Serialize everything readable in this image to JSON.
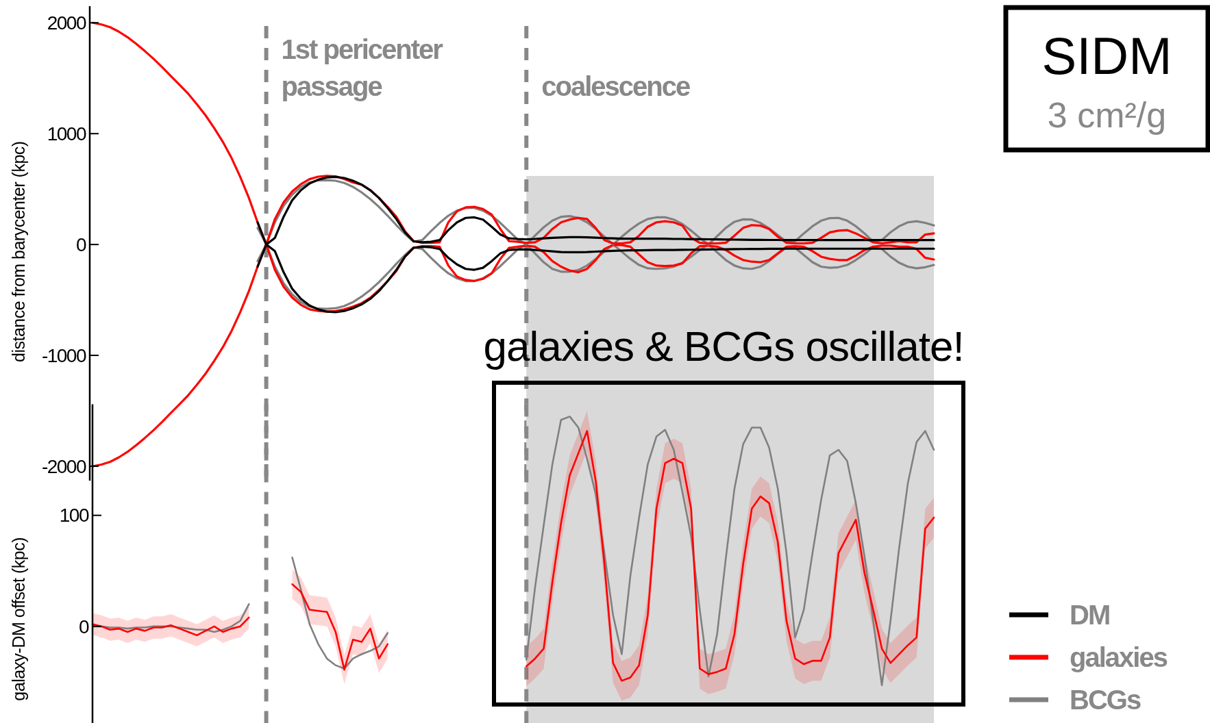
{
  "chart_data": [
    {
      "type": "line",
      "ylabel": "distance from barycenter (kpc)",
      "annotations": [
        "1st pericenter passage",
        "coalescence",
        "SIDM",
        "3 cm²/g"
      ],
      "categories": [
        null,
        null,
        null,
        null,
        null,
        null,
        null,
        null,
        null,
        null,
        null,
        null,
        null,
        null,
        null,
        null,
        null,
        null,
        null,
        null,
        null,
        null,
        null,
        null,
        null,
        null,
        null,
        null,
        null,
        null,
        null,
        null,
        null,
        null,
        null,
        null,
        null,
        null,
        null,
        null,
        null,
        null,
        null,
        null,
        null,
        null,
        null,
        null,
        null,
        null,
        null,
        null,
        null,
        null,
        null,
        null,
        null,
        null,
        null,
        null,
        null,
        null,
        null,
        null,
        null,
        null,
        null,
        null,
        null,
        null,
        null,
        null,
        null,
        null,
        null,
        null,
        null,
        null,
        null,
        null,
        null,
        null,
        null,
        null,
        null,
        null,
        null,
        null,
        null,
        null,
        null,
        null,
        null,
        null,
        null,
        null,
        null,
        null
      ],
      "ylim": [
        -2130,
        2150
      ],
      "yticks": [
        -2000,
        -1000,
        0,
        1000,
        2000
      ],
      "tick_labels": "y",
      "grid": false,
      "legend": "bottom right",
      "series": [
        {
          "name": "DM",
          "color": "#000000",
          "values": [
            null,
            null,
            null,
            null,
            null,
            null,
            null,
            null,
            null,
            null,
            null,
            null,
            null,
            null,
            null,
            null,
            null,
            null,
            null,
            200,
            0,
            60,
            250,
            400,
            490,
            550,
            585,
            605,
            610,
            600,
            575,
            540,
            490,
            420,
            330,
            230,
            110,
            30,
            20,
            25,
            40,
            130,
            200,
            240,
            245,
            225,
            160,
            90,
            55,
            50,
            47,
            50,
            55,
            60,
            63,
            66,
            66,
            65,
            62,
            58,
            55,
            53,
            52,
            52,
            52,
            52,
            52,
            50,
            50,
            48,
            48,
            47,
            46,
            45,
            44,
            43,
            42,
            42,
            41,
            41,
            40,
            40,
            40,
            40,
            40,
            40,
            40,
            40,
            40,
            40,
            40,
            40,
            40,
            40,
            40,
            40,
            40,
            40
          ]
        },
        {
          "name": "galaxies",
          "color": "#ff0000",
          "values": [
            2000,
            1985,
            1960,
            1920,
            1870,
            1810,
            1745,
            1675,
            1600,
            1520,
            1440,
            1360,
            1265,
            1165,
            1050,
            925,
            780,
            610,
            420,
            200,
            0,
            230,
            380,
            480,
            545,
            590,
            612,
            620,
            615,
            590,
            560,
            540,
            490,
            420,
            340,
            250,
            120,
            30,
            15,
            15,
            20,
            200,
            300,
            335,
            340,
            320,
            270,
            140,
            30,
            25,
            15,
            20,
            60,
            140,
            200,
            225,
            240,
            230,
            150,
            40,
            10,
            10,
            20,
            80,
            160,
            200,
            210,
            200,
            170,
            60,
            15,
            10,
            10,
            15,
            80,
            150,
            175,
            170,
            140,
            70,
            15,
            10,
            10,
            15,
            60,
            110,
            125,
            130,
            100,
            60,
            20,
            10,
            20,
            30,
            20,
            20,
            90,
            100
          ]
        },
        {
          "name": "BCGs",
          "color": "#808080",
          "values": [
            null,
            null,
            null,
            null,
            null,
            null,
            null,
            null,
            null,
            null,
            null,
            null,
            null,
            null,
            null,
            null,
            null,
            null,
            null,
            150,
            0,
            200,
            350,
            450,
            520,
            560,
            578,
            580,
            575,
            555,
            520,
            470,
            410,
            340,
            260,
            175,
            95,
            25,
            40,
            120,
            195,
            260,
            305,
            330,
            330,
            305,
            260,
            195,
            120,
            45,
            0,
            80,
            155,
            215,
            250,
            256,
            240,
            200,
            140,
            70,
            0,
            70,
            135,
            190,
            230,
            245,
            246,
            225,
            185,
            125,
            60,
            0,
            75,
            150,
            205,
            227,
            225,
            195,
            145,
            85,
            25,
            30,
            100,
            165,
            215,
            238,
            240,
            215,
            165,
            100,
            25,
            40,
            110,
            165,
            200,
            210,
            195,
            172
          ]
        },
        {
          "color": "#000000",
          "values": [
            null,
            null,
            null,
            null,
            null,
            null,
            null,
            null,
            null,
            null,
            null,
            null,
            null,
            null,
            null,
            null,
            null,
            null,
            null,
            -200,
            0,
            -60,
            -250,
            -400,
            -490,
            -550,
            -585,
            -605,
            -610,
            -600,
            -575,
            -540,
            -490,
            -420,
            -330,
            -230,
            -110,
            -30,
            -20,
            -25,
            -40,
            -120,
            -180,
            -220,
            -228,
            -210,
            -150,
            -80,
            -50,
            -45,
            -45,
            -50,
            -55,
            -62,
            -68,
            -70,
            -70,
            -68,
            -64,
            -60,
            -57,
            -55,
            -53,
            -52,
            -51,
            -50,
            -50,
            -49,
            -48,
            -47,
            -46,
            -45,
            -44,
            -43,
            -42,
            -41,
            -40,
            -40,
            -39,
            -39,
            -38,
            -38,
            -38,
            -38,
            -38,
            -38,
            -38,
            -38,
            -38,
            -38,
            -38,
            -38,
            -38,
            -38,
            -38,
            -38,
            -38,
            -38
          ]
        },
        {
          "color": "#ff0000",
          "values": [
            -2000,
            -1985,
            -1960,
            -1920,
            -1870,
            -1810,
            -1745,
            -1675,
            -1600,
            -1520,
            -1440,
            -1360,
            -1265,
            -1165,
            -1050,
            -925,
            -780,
            -610,
            -420,
            -200,
            0,
            -230,
            -380,
            -480,
            -545,
            -585,
            -600,
            -605,
            -600,
            -585,
            -560,
            -530,
            -480,
            -410,
            -330,
            -240,
            -110,
            -30,
            -15,
            -15,
            -20,
            -190,
            -290,
            -320,
            -328,
            -310,
            -260,
            -130,
            -30,
            -20,
            -10,
            -20,
            -70,
            -150,
            -200,
            -235,
            -250,
            -220,
            -140,
            -40,
            -5,
            -5,
            -20,
            -90,
            -160,
            -190,
            -195,
            -190,
            -170,
            -80,
            -15,
            -10,
            -20,
            -50,
            -100,
            -140,
            -155,
            -160,
            -140,
            -80,
            -20,
            -15,
            -20,
            -60,
            -110,
            -130,
            -140,
            -140,
            -100,
            -50,
            -20,
            -10,
            -10,
            -20,
            -20,
            -40,
            -120,
            -135
          ]
        },
        {
          "color": "#808080",
          "values": [
            null,
            null,
            null,
            null,
            null,
            null,
            null,
            null,
            null,
            null,
            null,
            null,
            null,
            null,
            null,
            null,
            null,
            null,
            null,
            -150,
            0,
            -200,
            -350,
            -450,
            -520,
            -560,
            -578,
            -580,
            -575,
            -555,
            -520,
            -470,
            -410,
            -340,
            -260,
            -175,
            -95,
            -25,
            -40,
            -120,
            -195,
            -260,
            -305,
            -330,
            -330,
            -305,
            -260,
            -195,
            -120,
            -45,
            0,
            -80,
            -160,
            -220,
            -245,
            -245,
            -230,
            -190,
            -130,
            -65,
            0,
            -65,
            -130,
            -185,
            -215,
            -220,
            -215,
            -200,
            -165,
            -110,
            -50,
            0,
            -70,
            -140,
            -190,
            -215,
            -220,
            -200,
            -150,
            -85,
            -25,
            -30,
            -95,
            -160,
            -200,
            -210,
            -205,
            -185,
            -140,
            -85,
            -25,
            -40,
            -110,
            -165,
            -200,
            -215,
            -205,
            -185
          ]
        }
      ]
    },
    {
      "type": "line",
      "ylabel": "galaxy-DM offset (kpc)",
      "annotations": [
        "galaxies & BCGs oscillate!"
      ],
      "categories": [
        null,
        null,
        null,
        null,
        null,
        null,
        null,
        null,
        null,
        null,
        null,
        null,
        null,
        null,
        null,
        null,
        null,
        null,
        null,
        null,
        null,
        null,
        null,
        null,
        null,
        null,
        null,
        null,
        null,
        null,
        null,
        null,
        null,
        null,
        null,
        null,
        null,
        null,
        null,
        null,
        null,
        null,
        null,
        null,
        null,
        null,
        null,
        null,
        null,
        null,
        null,
        null,
        null,
        null,
        null,
        null,
        null,
        null,
        null,
        null,
        null,
        null,
        null,
        null,
        null,
        null,
        null,
        null,
        null,
        null,
        null,
        null,
        null,
        null,
        null,
        null,
        null,
        null,
        null,
        null,
        null,
        null,
        null,
        null,
        null,
        null,
        null,
        null,
        null,
        null,
        null,
        null,
        null,
        null,
        null,
        null,
        null,
        null
      ],
      "ylim": [
        -87,
        200
      ],
      "yticks": [
        0,
        100
      ],
      "tick_labels": "y",
      "grid": false,
      "series": [
        {
          "color": "#ff0000",
          "values": [
            2,
            0,
            -3,
            -2,
            -5,
            -2,
            -4,
            -1,
            -1,
            1,
            -2,
            -5,
            -8,
            -4,
            0,
            -5,
            -2,
            0,
            8,
            null,
            null,
            null,
            null,
            38,
            31,
            15,
            14,
            13,
            -5,
            -39,
            -12,
            -14,
            -2,
            -29,
            -16,
            null,
            null,
            null,
            null,
            null,
            null,
            null,
            null,
            null,
            null,
            null,
            null,
            null,
            null,
            null,
            -36,
            -29,
            -20,
            40,
            93,
            136,
            156,
            176,
            131,
            56,
            -33,
            -49,
            -46,
            -35,
            10,
            106,
            147,
            151,
            147,
            106,
            -38,
            -43,
            -41,
            -38,
            -7,
            56,
            106,
            117,
            111,
            76,
            5,
            -29,
            -34,
            -31,
            -31,
            -10,
            66,
            81,
            96,
            48,
            15,
            -20,
            -33,
            -25,
            -17,
            -10,
            88,
            98
          ],
          "lower": [
            -8,
            -10,
            -13,
            -12,
            -15,
            -12,
            -14,
            -11,
            -11,
            -9,
            -12,
            -15,
            -18,
            -14,
            -10,
            -15,
            -12,
            -10,
            -2,
            null,
            null,
            null,
            null,
            25,
            18,
            2,
            1,
            0,
            -18,
            -52,
            -25,
            -27,
            -15,
            -42,
            -29,
            null,
            null,
            null,
            null,
            null,
            null,
            null,
            null,
            null,
            null,
            null,
            null,
            null,
            null,
            null,
            -54,
            -47,
            -38,
            22,
            75,
            118,
            138,
            158,
            113,
            38,
            -51,
            -67,
            -64,
            -53,
            -8,
            88,
            129,
            133,
            129,
            88,
            -56,
            -61,
            -59,
            -56,
            -25,
            38,
            88,
            99,
            93,
            58,
            -13,
            -47,
            -52,
            -49,
            -49,
            -28,
            48,
            63,
            78,
            30,
            -3,
            -38,
            -51,
            -43,
            -35,
            -28,
            70,
            80
          ],
          "upper": [
            12,
            10,
            7,
            8,
            5,
            8,
            6,
            9,
            9,
            11,
            8,
            5,
            2,
            6,
            10,
            5,
            8,
            10,
            18,
            null,
            null,
            null,
            null,
            51,
            44,
            28,
            27,
            26,
            8,
            -26,
            1,
            -1,
            11,
            -16,
            -3,
            null,
            null,
            null,
            null,
            null,
            null,
            null,
            null,
            null,
            null,
            null,
            null,
            null,
            null,
            null,
            -18,
            -11,
            -2,
            58,
            111,
            154,
            174,
            194,
            149,
            74,
            -15,
            -31,
            -28,
            -17,
            28,
            124,
            165,
            169,
            165,
            124,
            -20,
            -25,
            -23,
            -20,
            11,
            74,
            124,
            135,
            129,
            94,
            23,
            -11,
            -16,
            -13,
            -13,
            8,
            84,
            99,
            114,
            66,
            33,
            -2,
            -15,
            -7,
            1,
            8,
            106,
            116
          ]
        },
        {
          "color": "#808080",
          "values": [
            0,
            0,
            -1,
            -1,
            -2,
            -1,
            -1,
            0,
            0,
            0,
            -1,
            -2,
            -3,
            -3,
            -5,
            -3,
            0,
            5,
            20,
            null,
            null,
            null,
            null,
            62,
            33,
            2,
            -16,
            -29,
            -35,
            -38,
            -29,
            -25,
            -22,
            -18,
            -6,
            null,
            null,
            null,
            null,
            null,
            null,
            null,
            null,
            null,
            null,
            null,
            null,
            null,
            null,
            null,
            -30,
            35,
            91,
            146,
            186,
            189,
            179,
            151,
            119,
            66,
            10,
            -25,
            46,
            98,
            146,
            171,
            177,
            159,
            121,
            81,
            15,
            -45,
            -7,
            61,
            124,
            164,
            179,
            179,
            161,
            124,
            66,
            -10,
            15,
            66,
            114,
            154,
            159,
            149,
            111,
            63,
            5,
            -53,
            5,
            71,
            129,
            166,
            176,
            159
          ]
        }
      ]
    }
  ]
}
